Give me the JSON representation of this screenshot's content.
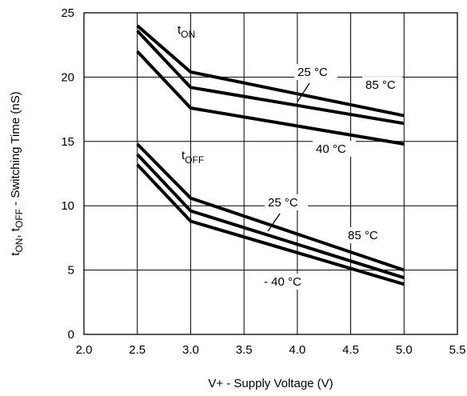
{
  "chart_data": {
    "type": "line",
    "xlabel": "V+ - Supply Voltage (V)",
    "ylabel": "tON, tOFF - Switching Time (nS)",
    "ylabel_parts": [
      "t",
      "ON",
      ", t",
      "OFF",
      " - Switching Time (nS)"
    ],
    "xlim": [
      2.0,
      5.5
    ],
    "ylim": [
      0,
      25
    ],
    "xticks": [
      "2.0",
      "2.5",
      "3.0",
      "3.5",
      "4.0",
      "4.5",
      "5.0",
      "5.5"
    ],
    "yticks": [
      "0",
      "5",
      "10",
      "15",
      "20",
      "25"
    ],
    "grid": true,
    "x": [
      2.5,
      3.0,
      5.0
    ],
    "series": [
      {
        "name": "tON 85 °C",
        "values": [
          24.0,
          20.4,
          17.0
        ]
      },
      {
        "name": "tON 25 °C",
        "values": [
          23.6,
          19.2,
          16.4
        ]
      },
      {
        "name": "tON -40 °C",
        "values": [
          22.0,
          17.6,
          14.8
        ]
      },
      {
        "name": "tOFF 85 °C",
        "values": [
          14.8,
          10.6,
          5.0
        ]
      },
      {
        "name": "tOFF 25 °C",
        "values": [
          14.0,
          9.6,
          4.4
        ]
      },
      {
        "name": "tOFF -40 °C",
        "values": [
          13.2,
          8.8,
          3.9
        ]
      }
    ],
    "annotations": {
      "ton_group": {
        "main": "t",
        "sub": "ON"
      },
      "toff_group": {
        "main": "t",
        "sub": "OFF"
      },
      "ton_25": "25 °C",
      "ton_85": "85 °C",
      "ton_40": "40 °C",
      "toff_25": "25 °C",
      "toff_85": "85 °C",
      "toff_40": "- 40 °C"
    }
  }
}
